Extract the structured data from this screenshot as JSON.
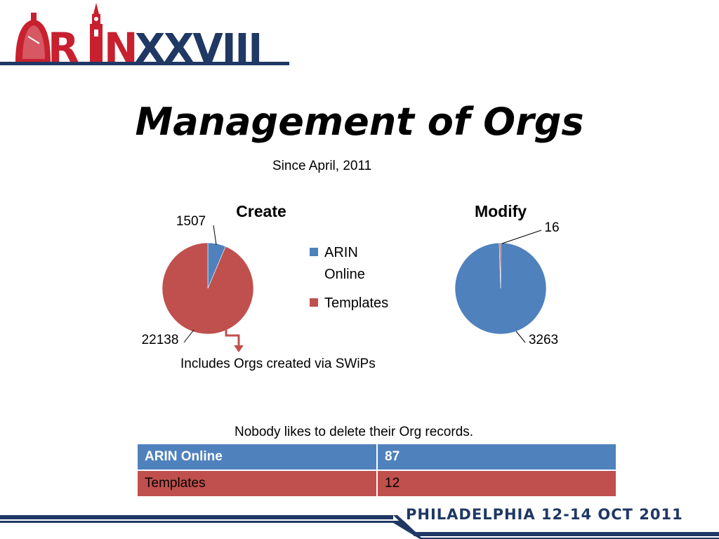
{
  "brand": {
    "logo_text": "ARINXXVIII",
    "navy": "#1f3864",
    "red": "#c8202f"
  },
  "slide": {
    "title": "Management of Orgs",
    "subtitle": "Since April, 2011",
    "note_swips": "Includes Orgs created via SWiPs",
    "note_delete": "Nobody likes to delete their Org records."
  },
  "chart_data": [
    {
      "type": "pie",
      "title": "Create",
      "slices": [
        {
          "label": "ARIN Online",
          "value": 1507,
          "color": "#4f81bd"
        },
        {
          "label": "Templates",
          "value": 22138,
          "color": "#c0504d"
        }
      ],
      "legend": "right",
      "data_labels": true
    },
    {
      "type": "pie",
      "title": "Modify",
      "slices": [
        {
          "label": "ARIN Online",
          "value": 3263,
          "color": "#4f81bd"
        },
        {
          "label": "Templates",
          "value": 16,
          "color": "#c0504d"
        }
      ],
      "legend": "none",
      "data_labels": true
    },
    {
      "type": "table",
      "rows": [
        {
          "label": "ARIN Online",
          "value": "87",
          "color": "#4f81bd"
        },
        {
          "label": "Templates",
          "value": "12",
          "color": "#c0504d"
        }
      ]
    }
  ],
  "legend": {
    "items": [
      {
        "lines": [
          "ARIN",
          "Online"
        ],
        "color": "#4f81bd"
      },
      {
        "lines": [
          "Templates"
        ],
        "color": "#c0504d"
      }
    ]
  },
  "footer": {
    "text": "PHILADELPHIA 12-14 OCT 2011"
  }
}
